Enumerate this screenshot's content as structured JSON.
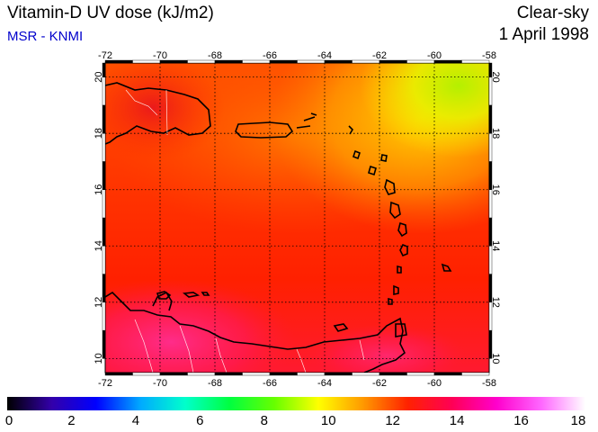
{
  "header": {
    "title": "Vitamin-D UV dose (kJ/m2)",
    "subtitle": "MSR - KNMI",
    "sky": "Clear-sky",
    "date": "1 April 1998"
  },
  "map": {
    "lon_range": [
      -72,
      -58
    ],
    "lat_range": [
      9.5,
      20.5
    ],
    "lon_ticks": [
      "-72",
      "-70",
      "-68",
      "-66",
      "-64",
      "-62",
      "-60",
      "-58"
    ],
    "lat_ticks": [
      "10",
      "12",
      "14",
      "16",
      "18",
      "20"
    ],
    "grid": true,
    "colors": {
      "deep_red": "#e8141e",
      "red": "#ff2400",
      "orange": "#ff6400",
      "yellow": "#ffdd00",
      "green": "#b4f000",
      "magenta": "#ff2c8a"
    }
  },
  "colorbar": {
    "range": [
      0,
      18
    ],
    "labels": [
      "0",
      "2",
      "4",
      "6",
      "8",
      "10",
      "12",
      "14",
      "16",
      "18"
    ],
    "colors": [
      "#000000",
      "#3300aa",
      "#0000ff",
      "#00aaff",
      "#00ffcc",
      "#00ff40",
      "#66ff00",
      "#ffff00",
      "#ff9900",
      "#ff2200",
      "#ff0055",
      "#ff00cc",
      "#ff66ff",
      "#ffffff"
    ]
  }
}
